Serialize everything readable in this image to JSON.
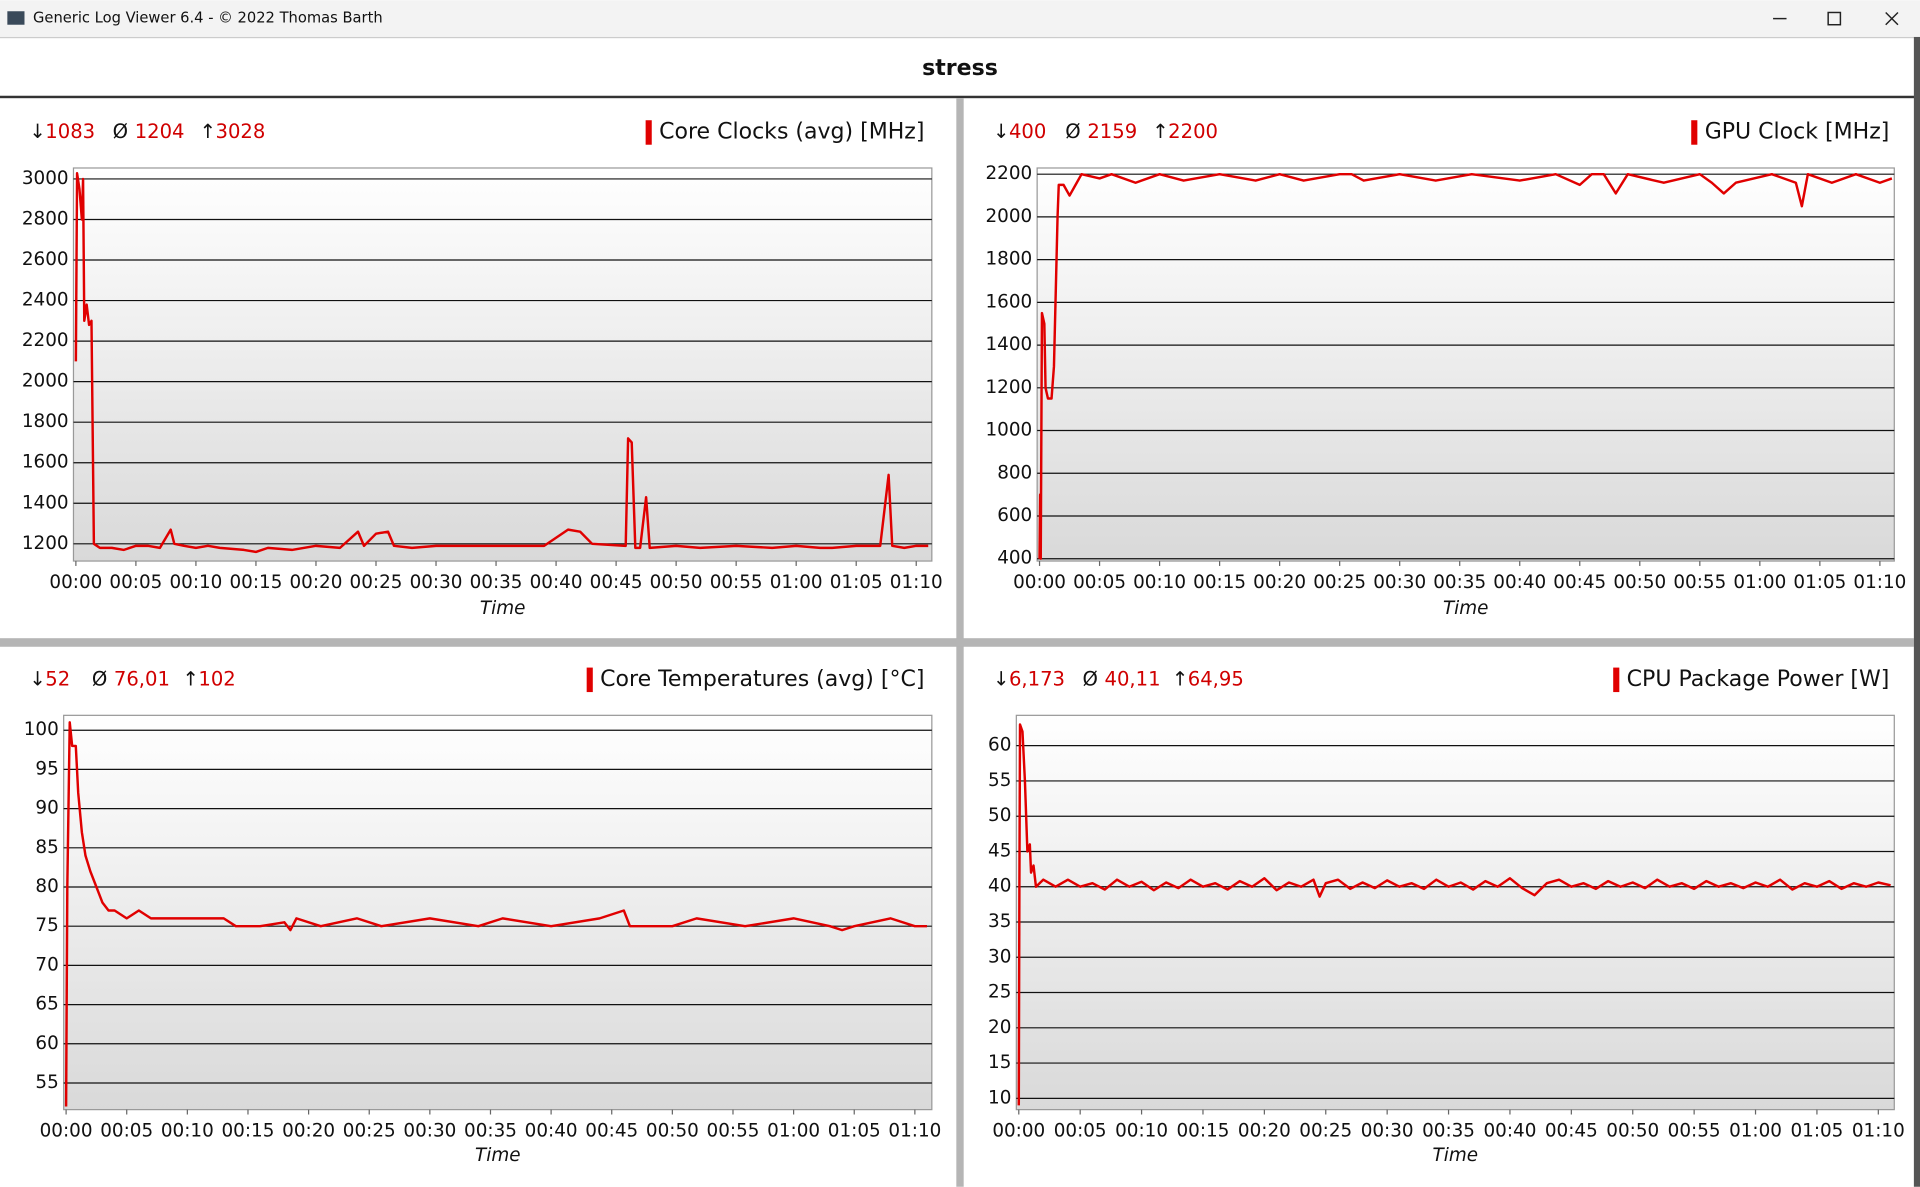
{
  "window": {
    "title": "Generic Log Viewer 6.4 - © 2022 Thomas Barth"
  },
  "header": "stress",
  "stat_symbols": [
    "↓",
    "Ø",
    "↑"
  ],
  "chart_data": [
    {
      "type": "line",
      "x_label": "Time",
      "stats": [
        "1083",
        "1204",
        "3028"
      ],
      "series": [
        {
          "name": "Core Clocks (avg) [MHz]",
          "color": "#e00000",
          "x": [
            0,
            0.1,
            0.3,
            0.5,
            0.6,
            0.7,
            0.9,
            1.1,
            1.3,
            1.5,
            2,
            3,
            4,
            5,
            6,
            7,
            7.9,
            8.2,
            9,
            10,
            11,
            12,
            14,
            15,
            16,
            18,
            20,
            22,
            23.5,
            24,
            25,
            26,
            26.5,
            28,
            30,
            33,
            36,
            39,
            41,
            42,
            43,
            45.8,
            46,
            46.3,
            46.6,
            47,
            47.5,
            47.8,
            50,
            52,
            55,
            58,
            60,
            62,
            63,
            65,
            67,
            67.7,
            68,
            69,
            70,
            71
          ],
          "values": [
            2100,
            3028,
            2950,
            2800,
            3000,
            2300,
            2380,
            2280,
            2300,
            1200,
            1180,
            1180,
            1170,
            1190,
            1190,
            1180,
            1270,
            1200,
            1190,
            1180,
            1190,
            1180,
            1170,
            1160,
            1180,
            1170,
            1190,
            1180,
            1260,
            1190,
            1250,
            1260,
            1190,
            1180,
            1190,
            1190,
            1190,
            1190,
            1270,
            1260,
            1200,
            1190,
            1720,
            1700,
            1180,
            1180,
            1430,
            1180,
            1190,
            1180,
            1190,
            1180,
            1190,
            1180,
            1180,
            1190,
            1190,
            1540,
            1190,
            1180,
            1190,
            1190
          ]
        }
      ],
      "xlim": [
        -0.2,
        71.3
      ],
      "ylim": [
        1115,
        3054
      ],
      "yticks": [
        1200,
        1400,
        1600,
        1800,
        2000,
        2200,
        2400,
        2600,
        2800,
        3000
      ],
      "xticks": [
        {
          "value": 0,
          "label": "00:00"
        },
        {
          "value": 5,
          "label": "00:05"
        },
        {
          "value": 10,
          "label": "00:10"
        },
        {
          "value": 15,
          "label": "00:15"
        },
        {
          "value": 20,
          "label": "00:20"
        },
        {
          "value": 25,
          "label": "00:25"
        },
        {
          "value": 30,
          "label": "00:30"
        },
        {
          "value": 35,
          "label": "00:35"
        },
        {
          "value": 40,
          "label": "00:40"
        },
        {
          "value": 45,
          "label": "00:45"
        },
        {
          "value": 50,
          "label": "00:50"
        },
        {
          "value": 55,
          "label": "00:55"
        },
        {
          "value": 60,
          "label": "01:00"
        },
        {
          "value": 65,
          "label": "01:05"
        },
        {
          "value": 70,
          "label": "01:10"
        }
      ],
      "grid": true
    },
    {
      "type": "line",
      "x_label": "Time",
      "stats": [
        "400",
        "2159",
        "2200"
      ],
      "series": [
        {
          "name": "GPU Clock [MHz]",
          "color": "#e00000",
          "x": [
            0,
            0.05,
            0.1,
            0.2,
            0.4,
            0.5,
            0.7,
            1,
            1.2,
            1.5,
            1.6,
            2,
            2.5,
            3,
            3.5,
            5,
            6,
            8,
            10,
            12,
            15,
            18,
            20,
            22,
            25,
            26,
            27,
            30,
            33,
            36,
            40,
            43,
            45,
            46,
            47,
            48,
            49,
            52,
            55,
            56,
            57,
            58,
            61,
            63,
            63.5,
            64,
            66,
            68,
            70,
            71
          ],
          "values": [
            400,
            700,
            400,
            1550,
            1500,
            1200,
            1150,
            1150,
            1300,
            2000,
            2150,
            2150,
            2100,
            2150,
            2200,
            2180,
            2200,
            2160,
            2200,
            2170,
            2200,
            2170,
            2200,
            2170,
            2200,
            2200,
            2170,
            2200,
            2170,
            2200,
            2170,
            2200,
            2150,
            2200,
            2200,
            2110,
            2200,
            2160,
            2200,
            2160,
            2110,
            2160,
            2200,
            2160,
            2050,
            2200,
            2160,
            2200,
            2160,
            2180
          ]
        }
      ],
      "xlim": [
        -0.2,
        71.2
      ],
      "ylim": [
        389,
        2229
      ],
      "yticks": [
        400,
        600,
        800,
        1000,
        1200,
        1400,
        1600,
        1800,
        2000,
        2200
      ],
      "xticks": [
        {
          "value": 0,
          "label": "00:00"
        },
        {
          "value": 5,
          "label": "00:05"
        },
        {
          "value": 10,
          "label": "00:10"
        },
        {
          "value": 15,
          "label": "00:15"
        },
        {
          "value": 20,
          "label": "00:20"
        },
        {
          "value": 25,
          "label": "00:25"
        },
        {
          "value": 30,
          "label": "00:30"
        },
        {
          "value": 35,
          "label": "00:35"
        },
        {
          "value": 40,
          "label": "00:40"
        },
        {
          "value": 45,
          "label": "00:45"
        },
        {
          "value": 50,
          "label": "00:50"
        },
        {
          "value": 55,
          "label": "00:55"
        },
        {
          "value": 60,
          "label": "01:00"
        },
        {
          "value": 65,
          "label": "01:05"
        },
        {
          "value": 70,
          "label": "01:10"
        }
      ],
      "grid": true
    },
    {
      "type": "line",
      "x_label": "Time",
      "stats": [
        "52",
        "76,01",
        "102"
      ],
      "series": [
        {
          "name": "Core Temperatures (avg) [°C]",
          "color": "#e00000",
          "x": [
            0,
            0.1,
            0.3,
            0.5,
            0.8,
            1,
            1.3,
            1.6,
            2,
            2.5,
            3,
            3.5,
            4,
            5,
            6,
            7,
            10,
            13,
            14,
            16,
            18,
            18.5,
            19,
            21,
            24,
            26,
            30,
            34,
            36,
            40,
            44,
            46,
            46.5,
            50,
            52,
            56,
            60,
            63,
            64,
            65,
            68,
            70,
            71
          ],
          "values": [
            52,
            80,
            101,
            98,
            98,
            92,
            87,
            84,
            82,
            80,
            78,
            77,
            77,
            76,
            77,
            76,
            76,
            76,
            75,
            75,
            75.5,
            74.5,
            76,
            75,
            76,
            75,
            76,
            75,
            76,
            75,
            76,
            77,
            75,
            75,
            76,
            75,
            76,
            75,
            74.5,
            75,
            76,
            75,
            75
          ]
        }
      ],
      "xlim": [
        -0.2,
        71.4
      ],
      "ylim": [
        51.6,
        101.9
      ],
      "yticks": [
        55,
        60,
        65,
        70,
        75,
        80,
        85,
        90,
        95,
        100
      ],
      "xticks": [
        {
          "value": 0,
          "label": "00:00"
        },
        {
          "value": 5,
          "label": "00:05"
        },
        {
          "value": 10,
          "label": "00:10"
        },
        {
          "value": 15,
          "label": "00:15"
        },
        {
          "value": 20,
          "label": "00:20"
        },
        {
          "value": 25,
          "label": "00:25"
        },
        {
          "value": 30,
          "label": "00:30"
        },
        {
          "value": 35,
          "label": "00:35"
        },
        {
          "value": 40,
          "label": "00:40"
        },
        {
          "value": 45,
          "label": "00:45"
        },
        {
          "value": 50,
          "label": "00:50"
        },
        {
          "value": 55,
          "label": "00:55"
        },
        {
          "value": 60,
          "label": "01:00"
        },
        {
          "value": 65,
          "label": "01:05"
        },
        {
          "value": 70,
          "label": "01:10"
        }
      ],
      "grid": true
    },
    {
      "type": "line",
      "x_label": "Time",
      "stats": [
        "6,173",
        "40,11",
        "64,95"
      ],
      "series": [
        {
          "name": "CPU Package Power [W]",
          "color": "#e00000",
          "x": [
            0,
            0.05,
            0.1,
            0.3,
            0.5,
            0.7,
            0.9,
            1,
            1.2,
            1.4,
            2,
            3,
            4,
            5,
            6,
            7,
            8,
            9,
            10,
            11,
            12,
            13,
            14,
            15,
            16,
            17,
            18,
            19,
            20,
            21,
            22,
            23,
            24,
            24.5,
            25,
            26,
            27,
            28,
            29,
            30,
            31,
            32,
            33,
            34,
            35,
            36,
            37,
            38,
            39,
            40,
            41,
            42,
            43,
            44,
            45,
            46,
            47,
            48,
            49,
            50,
            51,
            52,
            53,
            54,
            55,
            56,
            57,
            58,
            59,
            60,
            61,
            62,
            63,
            64,
            65,
            66,
            67,
            68,
            69,
            70,
            71
          ],
          "values": [
            9,
            40,
            63,
            62,
            55,
            45,
            46,
            42,
            43,
            40,
            41,
            40,
            41,
            40,
            40.5,
            39.6,
            41,
            40,
            40.7,
            39.5,
            40.6,
            39.8,
            41,
            40,
            40.5,
            39.6,
            40.8,
            40,
            41.2,
            39.5,
            40.6,
            40,
            41,
            38.6,
            40.5,
            41,
            39.7,
            40.6,
            39.8,
            40.9,
            40,
            40.5,
            39.7,
            41,
            40,
            40.6,
            39.6,
            40.8,
            40,
            41.2,
            39.8,
            38.8,
            40.5,
            41,
            40,
            40.5,
            39.7,
            40.8,
            40,
            40.6,
            39.8,
            41,
            40,
            40.5,
            39.7,
            40.8,
            40,
            40.5,
            39.8,
            40.6,
            40,
            41,
            39.6,
            40.5,
            40,
            40.8,
            39.7,
            40.5,
            40,
            40.6,
            40.2
          ]
        }
      ],
      "xlim": [
        -0.2,
        71.3
      ],
      "ylim": [
        8.4,
        64.3
      ],
      "yticks": [
        10,
        15,
        20,
        25,
        30,
        35,
        40,
        45,
        50,
        55,
        60
      ],
      "xticks": [
        {
          "value": 0,
          "label": "00:00"
        },
        {
          "value": 5,
          "label": "00:05"
        },
        {
          "value": 10,
          "label": "00:10"
        },
        {
          "value": 15,
          "label": "00:15"
        },
        {
          "value": 20,
          "label": "00:20"
        },
        {
          "value": 25,
          "label": "00:25"
        },
        {
          "value": 30,
          "label": "00:30"
        },
        {
          "value": 35,
          "label": "00:35"
        },
        {
          "value": 40,
          "label": "00:40"
        },
        {
          "value": 45,
          "label": "00:45"
        },
        {
          "value": 50,
          "label": "00:50"
        },
        {
          "value": 55,
          "label": "00:55"
        },
        {
          "value": 60,
          "label": "01:00"
        },
        {
          "value": 65,
          "label": "01:05"
        },
        {
          "value": 70,
          "label": "01:10"
        }
      ],
      "grid": true
    }
  ]
}
